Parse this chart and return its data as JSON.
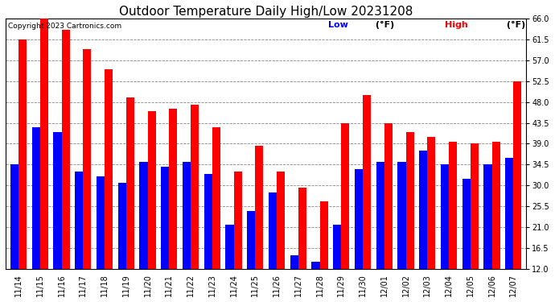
{
  "title": "Outdoor Temperature Daily High/Low 20231208",
  "copyright": "Copyright 2023 Cartronics.com",
  "dates": [
    "11/14",
    "11/15",
    "11/16",
    "11/17",
    "11/18",
    "11/19",
    "11/20",
    "11/21",
    "11/22",
    "11/23",
    "11/24",
    "11/25",
    "11/26",
    "11/27",
    "11/28",
    "11/29",
    "11/30",
    "12/01",
    "12/02",
    "12/03",
    "12/04",
    "12/05",
    "12/06",
    "12/07"
  ],
  "high": [
    61.5,
    66.0,
    63.5,
    59.5,
    55.0,
    49.0,
    46.0,
    46.5,
    47.5,
    42.5,
    33.0,
    38.5,
    33.0,
    29.5,
    26.5,
    43.5,
    49.5,
    43.5,
    41.5,
    40.5,
    39.5,
    39.0,
    39.5,
    52.5
  ],
  "low": [
    34.5,
    42.5,
    41.5,
    33.0,
    32.0,
    30.5,
    35.0,
    34.0,
    35.0,
    32.5,
    21.5,
    24.5,
    28.5,
    15.0,
    13.5,
    21.5,
    33.5,
    35.0,
    35.0,
    37.5,
    34.5,
    31.5,
    34.5,
    36.0
  ],
  "ymin": 12.0,
  "ymax": 66.0,
  "yticks": [
    12.0,
    16.5,
    21.0,
    25.5,
    30.0,
    34.5,
    39.0,
    43.5,
    48.0,
    52.5,
    57.0,
    61.5,
    66.0
  ],
  "high_color": "#ff0000",
  "low_color": "#0000ff",
  "bg_color": "#ffffff",
  "grid_color": "#888888",
  "bar_width": 0.38,
  "title_fontsize": 11,
  "tick_fontsize": 7,
  "legend_fontsize": 8
}
